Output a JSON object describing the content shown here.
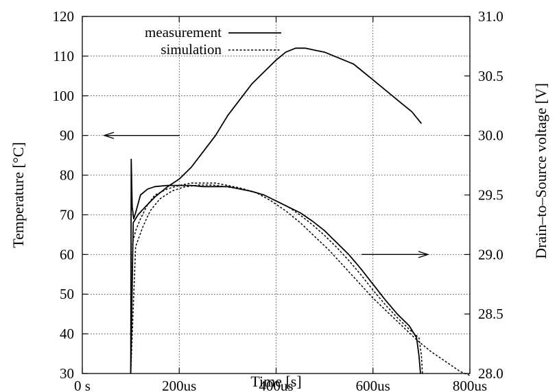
{
  "chart_data": {
    "type": "line",
    "title": "",
    "xlabel": "Time [s]",
    "ylabel": "Temperature [°C]",
    "y2label": "Drain–to–Source voltage [V]",
    "xlim": [
      0,
      800
    ],
    "ylim": [
      30,
      120
    ],
    "y2lim": [
      28.0,
      31.0
    ],
    "grid": true,
    "legend_position": "top-center",
    "x_ticks": [
      {
        "value": 0,
        "label": "0 s"
      },
      {
        "value": 200,
        "label": "200us"
      },
      {
        "value": 400,
        "label": "400us"
      },
      {
        "value": 600,
        "label": "600us"
      },
      {
        "value": 800,
        "label": "800us"
      }
    ],
    "y_ticks": [
      {
        "value": 30,
        "label": "30"
      },
      {
        "value": 40,
        "label": "40"
      },
      {
        "value": 50,
        "label": "50"
      },
      {
        "value": 60,
        "label": "60"
      },
      {
        "value": 70,
        "label": "70"
      },
      {
        "value": 80,
        "label": "80"
      },
      {
        "value": 90,
        "label": "90"
      },
      {
        "value": 100,
        "label": "100"
      },
      {
        "value": 110,
        "label": "110"
      },
      {
        "value": 120,
        "label": "120"
      }
    ],
    "y2_ticks": [
      {
        "value": 28.0,
        "label": "28.0"
      },
      {
        "value": 28.5,
        "label": "28.5"
      },
      {
        "value": 29.0,
        "label": "29.0"
      },
      {
        "value": 29.5,
        "label": "29.5"
      },
      {
        "value": 30.0,
        "label": "30.0"
      },
      {
        "value": 30.5,
        "label": "30.5"
      },
      {
        "value": 31.0,
        "label": "31.0"
      }
    ],
    "legend": [
      {
        "name": "measurement",
        "style": "solid"
      },
      {
        "name": "simulation",
        "style": "dashed"
      }
    ],
    "series": [
      {
        "name": "measurement",
        "axis": "temperature",
        "style": "solid",
        "x": [
          100,
          105,
          115,
          130,
          150,
          175,
          200,
          225,
          250,
          275,
          300,
          325,
          350,
          375,
          400,
          420,
          440,
          460,
          480,
          500,
          520,
          540,
          560,
          580,
          600,
          620,
          640,
          660,
          680,
          700
        ],
        "y": [
          30,
          68,
          70,
          72,
          74.5,
          77,
          79,
          82,
          86,
          90,
          95,
          99,
          103,
          106,
          109,
          111,
          112,
          112,
          111.5,
          111,
          110,
          109,
          108,
          106,
          104,
          102,
          100,
          98,
          96,
          93
        ]
      },
      {
        "name": "simulation",
        "axis": "temperature",
        "style": "dashed",
        "x": [
          100,
          110,
          125,
          140,
          160,
          185,
          210,
          240,
          270,
          300,
          330,
          360,
          390,
          420,
          450,
          480,
          510,
          540,
          570,
          600,
          630,
          660,
          690,
          720,
          750,
          780,
          800
        ],
        "y": [
          30,
          62,
          67,
          71,
          74,
          76,
          77,
          77.5,
          77.5,
          77,
          76.5,
          75.5,
          73.5,
          71,
          68,
          64.5,
          61,
          57,
          53,
          49,
          45.5,
          42,
          38.5,
          35.5,
          33,
          30.5,
          29.5
        ]
      },
      {
        "name": "measurement",
        "axis": "voltage",
        "style": "solid",
        "x": [
          100,
          101,
          103,
          106,
          110,
          120,
          135,
          150,
          175,
          200,
          225,
          250,
          275,
          300,
          325,
          350,
          375,
          400,
          425,
          450,
          475,
          500,
          525,
          550,
          575,
          600,
          625,
          650,
          675,
          690,
          695,
          698
        ],
        "y": [
          28.0,
          29.8,
          29.4,
          29.3,
          29.35,
          29.5,
          29.55,
          29.57,
          29.58,
          29.58,
          29.58,
          29.57,
          29.57,
          29.57,
          29.55,
          29.53,
          29.5,
          29.45,
          29.4,
          29.35,
          29.28,
          29.2,
          29.1,
          29.0,
          28.88,
          28.75,
          28.62,
          28.5,
          28.4,
          28.3,
          28.15,
          28.0
        ]
      },
      {
        "name": "simulation",
        "axis": "voltage",
        "style": "dashed",
        "x": [
          100,
          104,
          110,
          120,
          135,
          150,
          175,
          200,
          225,
          250,
          275,
          300,
          325,
          350,
          375,
          400,
          425,
          450,
          475,
          500,
          525,
          550,
          575,
          600,
          625,
          650,
          675,
          695,
          700,
          702
        ],
        "y": [
          28.0,
          29.1,
          29.2,
          29.3,
          29.42,
          29.5,
          29.55,
          29.58,
          29.6,
          29.6,
          29.6,
          29.58,
          29.56,
          29.53,
          29.5,
          29.45,
          29.4,
          29.33,
          29.25,
          29.16,
          29.06,
          28.95,
          28.83,
          28.7,
          28.58,
          28.47,
          28.37,
          28.3,
          28.15,
          28.0
        ]
      }
    ],
    "annotations": [
      {
        "type": "arrow",
        "direction": "left",
        "meaning": "temperature curves refer to left axis"
      },
      {
        "type": "arrow",
        "direction": "right",
        "meaning": "voltage curves refer to right axis"
      }
    ]
  }
}
